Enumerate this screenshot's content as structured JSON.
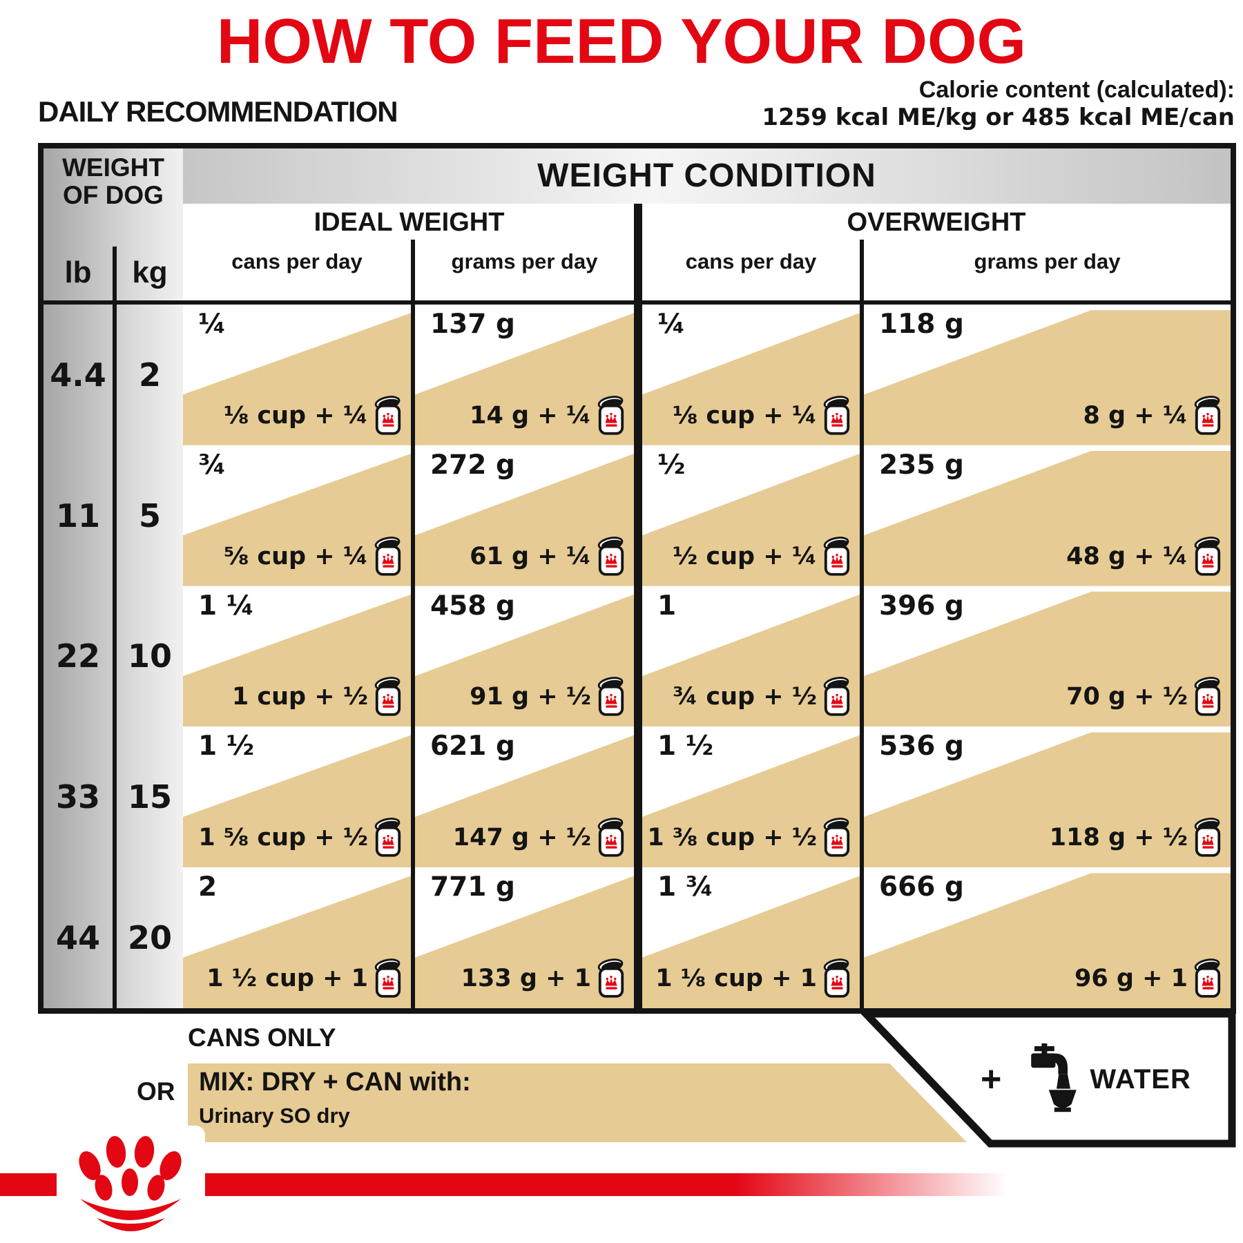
{
  "title": "HOW TO FEED YOUR DOG",
  "section_heading": "DAILY RECOMMENDATION",
  "calorie_content": {
    "line1": "Calorie content (calculated):",
    "line2": "1259 kcal ME/kg or 485 kcal ME/can"
  },
  "table": {
    "weight_header_line1": "WEIGHT",
    "weight_header_line2": "OF DOG",
    "lb_label": "lb",
    "kg_label": "kg",
    "condition_header": "WEIGHT CONDITION",
    "ideal_header": "IDEAL WEIGHT",
    "overweight_header": "OVERWEIGHT",
    "col_cans": "cans per day",
    "col_grams": "grams per day",
    "rows": [
      {
        "lb": "4.4",
        "kg": "2",
        "ideal_cans_top": "¼",
        "ideal_cans_mix": "⅛ cup + ¼",
        "ideal_grams_top": "137 g",
        "ideal_grams_mix": "14 g + ¼",
        "over_cans_top": "¼",
        "over_cans_mix": "⅛ cup + ¼",
        "over_grams_top": "118 g",
        "over_grams_mix": "8 g + ¼"
      },
      {
        "lb": "11",
        "kg": "5",
        "ideal_cans_top": "¾",
        "ideal_cans_mix": "⅝ cup + ¼",
        "ideal_grams_top": "272 g",
        "ideal_grams_mix": "61 g + ¼",
        "over_cans_top": "½",
        "over_cans_mix": "½ cup + ¼",
        "over_grams_top": "235 g",
        "over_grams_mix": "48 g + ¼"
      },
      {
        "lb": "22",
        "kg": "10",
        "ideal_cans_top": "1 ¼",
        "ideal_cans_mix": "1 cup + ½",
        "ideal_grams_top": "458 g",
        "ideal_grams_mix": "91 g + ½",
        "over_cans_top": "1",
        "over_cans_mix": "¾ cup + ½",
        "over_grams_top": "396 g",
        "over_grams_mix": "70 g + ½"
      },
      {
        "lb": "33",
        "kg": "15",
        "ideal_cans_top": "1 ½",
        "ideal_cans_mix": "1 ⅝ cup + ½",
        "ideal_grams_top": "621 g",
        "ideal_grams_mix": "147 g + ½",
        "over_cans_top": "1 ½",
        "over_cans_mix": "1 ⅜ cup + ½",
        "over_grams_top": "536 g",
        "over_grams_mix": "118 g + ½"
      },
      {
        "lb": "44",
        "kg": "20",
        "ideal_cans_top": "2",
        "ideal_cans_mix": "1 ½ cup + 1",
        "ideal_grams_top": "771 g",
        "ideal_grams_mix": "133 g + 1",
        "over_cans_top": "1 ¾",
        "over_cans_mix": "1 ⅛ cup + 1",
        "over_grams_top": "666 g",
        "over_grams_mix": "96 g + 1"
      }
    ]
  },
  "legend": {
    "cans_only": "CANS ONLY",
    "or_label": "OR",
    "mix_line1": "MIX: DRY + CAN with:",
    "mix_line2": "Urinary SO dry",
    "plus": "+",
    "water": "WATER"
  },
  "icons": {
    "can": "royal-canin-can-icon",
    "faucet": "water-faucet-icon",
    "paw": "royal-canin-paw-logo"
  },
  "colors": {
    "brand_red": "#e30613",
    "tan": "#e6cb94",
    "table_border": "#141414"
  }
}
